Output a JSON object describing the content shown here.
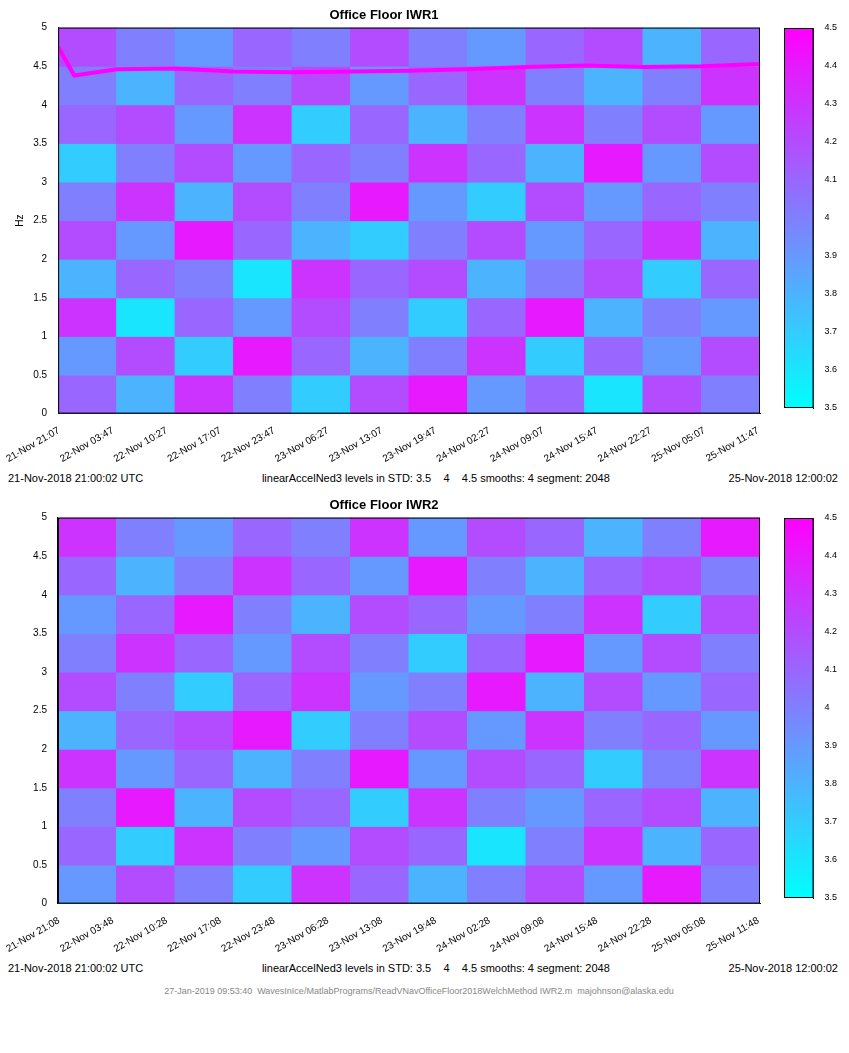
{
  "chart_data": [
    {
      "type": "heatmap",
      "title": "Office Floor IWR1",
      "y_label": "Hz",
      "xlim": [
        "2018-11-21T21:00:02Z",
        "2018-11-25T12:00:02Z"
      ],
      "xticks": [
        {
          "value": "2018-11-21T21:07:00Z",
          "label": "21-Nov 21:07"
        },
        {
          "value": "2018-11-22T03:47:00Z",
          "label": "22-Nov 03:47"
        },
        {
          "value": "2018-11-22T10:27:00Z",
          "label": "22-Nov 10:27"
        },
        {
          "value": "2018-11-22T17:07:00Z",
          "label": "22-Nov 17:07"
        },
        {
          "value": "2018-11-22T23:47:00Z",
          "label": "22-Nov 23:47"
        },
        {
          "value": "2018-11-23T06:27:00Z",
          "label": "23-Nov 06:27"
        },
        {
          "value": "2018-11-23T13:07:00Z",
          "label": "23-Nov 13:07"
        },
        {
          "value": "2018-11-23T19:47:00Z",
          "label": "23-Nov 19:47"
        },
        {
          "value": "2018-11-24T02:27:00Z",
          "label": "24-Nov 02:27"
        },
        {
          "value": "2018-11-24T09:07:00Z",
          "label": "24-Nov 09:07"
        },
        {
          "value": "2018-11-24T15:47:00Z",
          "label": "24-Nov 15:47"
        },
        {
          "value": "2018-11-24T22:27:00Z",
          "label": "24-Nov 22:27"
        },
        {
          "value": "2018-11-25T05:07:00Z",
          "label": "25-Nov 05:07"
        },
        {
          "value": "2018-11-25T11:47:00Z",
          "label": "25-Nov 11:47"
        }
      ],
      "ylim": [
        0,
        5
      ],
      "yticks": [
        0,
        0.5,
        1,
        1.5,
        2,
        2.5,
        3,
        3.5,
        4,
        4.5,
        5
      ],
      "grid": false,
      "x_edges": [
        "2018-11-21T21:00:02Z",
        "2018-11-22T04:15:02Z",
        "2018-11-22T11:30:02Z",
        "2018-11-22T18:45:02Z",
        "2018-11-23T02:00:02Z",
        "2018-11-23T09:15:02Z",
        "2018-11-23T16:30:02Z",
        "2018-11-23T23:45:02Z",
        "2018-11-24T07:00:02Z",
        "2018-11-24T14:15:02Z",
        "2018-11-24T21:30:02Z",
        "2018-11-25T04:45:02Z",
        "2018-11-25T12:00:02Z"
      ],
      "y_edges": [
        0,
        0.5,
        1,
        1.5,
        2,
        2.5,
        3,
        3.5,
        4,
        4.5,
        5
      ],
      "cells": [
        [
          4.1,
          3.8,
          4.3,
          4.0,
          3.7,
          4.2,
          4.4,
          3.9,
          4.1,
          3.6,
          4.2,
          4.0
        ],
        [
          3.9,
          4.2,
          3.7,
          4.4,
          4.1,
          3.8,
          4.0,
          4.3,
          3.7,
          4.1,
          3.9,
          4.2
        ],
        [
          4.3,
          3.6,
          4.1,
          3.9,
          4.2,
          4.0,
          3.7,
          4.1,
          4.4,
          3.8,
          4.0,
          3.9
        ],
        [
          3.8,
          4.1,
          4.0,
          3.6,
          4.3,
          4.1,
          4.2,
          3.8,
          4.0,
          4.2,
          3.7,
          4.1
        ],
        [
          4.2,
          3.9,
          4.4,
          4.1,
          3.8,
          3.7,
          4.0,
          4.2,
          3.9,
          4.1,
          4.3,
          3.8
        ],
        [
          4.0,
          4.3,
          3.8,
          4.2,
          4.0,
          4.4,
          3.9,
          3.7,
          4.2,
          3.9,
          4.1,
          4.0
        ],
        [
          3.7,
          4.0,
          4.2,
          3.9,
          4.1,
          4.0,
          4.3,
          4.1,
          3.8,
          4.4,
          3.9,
          4.2
        ],
        [
          4.1,
          4.2,
          3.9,
          4.3,
          3.7,
          4.1,
          3.8,
          4.0,
          4.3,
          4.0,
          4.2,
          3.9
        ],
        [
          4.0,
          3.8,
          4.1,
          4.0,
          4.2,
          3.9,
          4.1,
          4.3,
          4.0,
          3.8,
          4.0,
          4.3
        ],
        [
          4.2,
          4.0,
          3.9,
          4.1,
          4.0,
          4.2,
          4.0,
          3.9,
          4.1,
          4.2,
          3.8,
          4.1
        ]
      ],
      "colorbar": {
        "range": [
          3.5,
          4.5
        ],
        "ticks": [
          3.5,
          3.6,
          3.7,
          3.8,
          3.9,
          4,
          4.1,
          4.2,
          4.3,
          4.4,
          4.5
        ]
      },
      "series": [
        {
          "type": "line",
          "color": "#ff00ff",
          "marker": "none",
          "x": [
            "2018-11-21T21:00:02Z",
            "2018-11-21T23:00:00Z",
            "2018-11-22T04:15:02Z",
            "2018-11-22T11:30:02Z",
            "2018-11-22T18:45:02Z",
            "2018-11-23T02:00:02Z",
            "2018-11-23T09:15:02Z",
            "2018-11-23T16:30:02Z",
            "2018-11-23T23:45:02Z",
            "2018-11-24T07:00:02Z",
            "2018-11-24T14:15:02Z",
            "2018-11-24T21:30:02Z",
            "2018-11-25T04:45:02Z",
            "2018-11-25T12:00:02Z"
          ],
          "values": [
            4.75,
            4.38,
            4.46,
            4.47,
            4.43,
            4.42,
            4.43,
            4.44,
            4.46,
            4.49,
            4.51,
            4.49,
            4.5,
            4.53
          ]
        }
      ],
      "annotations": [
        "21-Nov-2018 21:00:02 UTC",
        "linearAccelNed3 levels in STD: 3.5    4    4.5 smooths: 4 segment: 2048",
        "25-Nov-2018 12:00:02"
      ]
    },
    {
      "type": "heatmap",
      "title": "Office Floor IWR2",
      "xlim": [
        "2018-11-21T21:00:02Z",
        "2018-11-25T12:00:02Z"
      ],
      "xticks": [
        {
          "value": "2018-11-21T21:08:00Z",
          "label": "21-Nov 21:08"
        },
        {
          "value": "2018-11-22T03:48:00Z",
          "label": "22-Nov 03:48"
        },
        {
          "value": "2018-11-22T10:28:00Z",
          "label": "22-Nov 10:28"
        },
        {
          "value": "2018-11-22T17:08:00Z",
          "label": "22-Nov 17:08"
        },
        {
          "value": "2018-11-22T23:48:00Z",
          "label": "22-Nov 23:48"
        },
        {
          "value": "2018-11-23T06:28:00Z",
          "label": "23-Nov 06:28"
        },
        {
          "value": "2018-11-23T13:08:00Z",
          "label": "23-Nov 13:08"
        },
        {
          "value": "2018-11-23T19:48:00Z",
          "label": "23-Nov 19:48"
        },
        {
          "value": "2018-11-24T02:28:00Z",
          "label": "24-Nov 02:28"
        },
        {
          "value": "2018-11-24T09:08:00Z",
          "label": "24-Nov 09:08"
        },
        {
          "value": "2018-11-24T15:48:00Z",
          "label": "24-Nov 15:48"
        },
        {
          "value": "2018-11-24T22:28:00Z",
          "label": "24-Nov 22:28"
        },
        {
          "value": "2018-11-25T05:08:00Z",
          "label": "25-Nov 05:08"
        },
        {
          "value": "2018-11-25T11:48:00Z",
          "label": "25-Nov 11:48"
        }
      ],
      "ylim": [
        0,
        5
      ],
      "yticks": [
        0,
        0.5,
        1,
        1.5,
        2,
        2.5,
        3,
        3.5,
        4,
        4.5,
        5
      ],
      "grid": false,
      "x_edges": [
        "2018-11-21T21:00:02Z",
        "2018-11-22T04:15:02Z",
        "2018-11-22T11:30:02Z",
        "2018-11-22T18:45:02Z",
        "2018-11-23T02:00:02Z",
        "2018-11-23T09:15:02Z",
        "2018-11-23T16:30:02Z",
        "2018-11-23T23:45:02Z",
        "2018-11-24T07:00:02Z",
        "2018-11-24T14:15:02Z",
        "2018-11-24T21:30:02Z",
        "2018-11-25T04:45:02Z",
        "2018-11-25T12:00:02Z"
      ],
      "y_edges": [
        0,
        0.5,
        1,
        1.5,
        2,
        2.5,
        3,
        3.5,
        4,
        4.5,
        5
      ],
      "cells": [
        [
          3.9,
          4.2,
          4.0,
          3.7,
          4.3,
          4.1,
          3.8,
          4.0,
          4.2,
          3.9,
          4.4,
          4.0
        ],
        [
          4.1,
          3.7,
          4.3,
          4.0,
          3.9,
          4.2,
          4.1,
          3.6,
          4.0,
          4.3,
          3.8,
          4.1
        ],
        [
          4.0,
          4.4,
          3.8,
          4.2,
          4.1,
          3.7,
          4.3,
          4.0,
          3.9,
          4.1,
          4.2,
          3.8
        ],
        [
          4.3,
          3.9,
          4.1,
          3.8,
          4.0,
          4.4,
          3.9,
          4.2,
          4.1,
          3.7,
          4.0,
          4.3
        ],
        [
          3.8,
          4.1,
          4.2,
          4.4,
          3.7,
          4.0,
          4.2,
          3.9,
          4.3,
          4.0,
          4.1,
          3.9
        ],
        [
          4.2,
          4.0,
          3.7,
          4.1,
          4.3,
          3.9,
          4.0,
          4.4,
          3.8,
          4.2,
          3.9,
          4.1
        ],
        [
          4.0,
          4.3,
          4.1,
          3.9,
          4.2,
          4.0,
          3.7,
          4.1,
          4.4,
          3.9,
          4.2,
          4.0
        ],
        [
          3.9,
          4.1,
          4.4,
          4.0,
          3.8,
          4.2,
          4.1,
          3.9,
          4.0,
          4.3,
          3.7,
          4.2
        ],
        [
          4.1,
          3.8,
          4.0,
          4.3,
          4.1,
          3.9,
          4.4,
          4.0,
          3.8,
          4.1,
          4.2,
          4.0
        ],
        [
          4.3,
          4.0,
          3.9,
          4.1,
          4.0,
          4.3,
          3.9,
          4.2,
          4.1,
          3.8,
          4.0,
          4.4
        ]
      ],
      "colorbar": {
        "range": [
          3.5,
          4.5
        ],
        "ticks": [
          3.5,
          3.6,
          3.7,
          3.8,
          3.9,
          4,
          4.1,
          4.2,
          4.3,
          4.4,
          4.5
        ]
      },
      "annotations": [
        "21-Nov-2018 21:00:02 UTC",
        "linearAccelNed3 levels in STD: 3.5    4    4.5 smooths: 4 segment: 2048",
        "25-Nov-2018 12:00:02"
      ]
    }
  ],
  "caption": "27-Jan-2019 09:53:40  WavesInIce/MatlabPrograms/ReadVNavOfficeFloor2018WelchMethod IWR2.m  majohnson@alaska.edu"
}
